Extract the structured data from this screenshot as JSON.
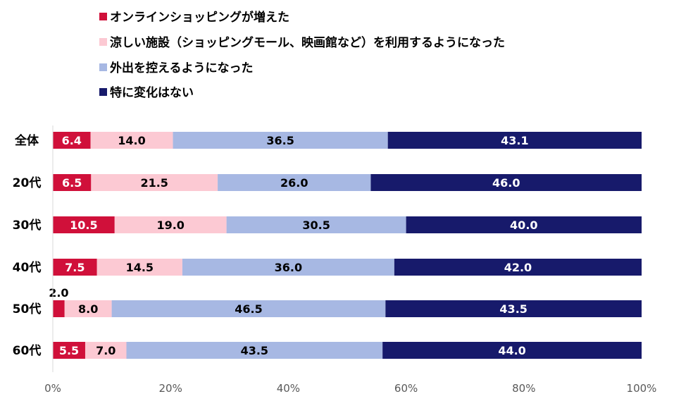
{
  "chart_data": {
    "type": "bar",
    "orientation": "horizontal",
    "stacked": "percent",
    "categories": [
      "全体",
      "20代",
      "30代",
      "40代",
      "50代",
      "60代"
    ],
    "series": [
      {
        "name": "オンラインショッピングが増えた",
        "color": "#d0103a",
        "label_color": "#ffffff",
        "values": [
          6.4,
          6.5,
          10.5,
          7.5,
          2.0,
          5.5
        ],
        "labels": [
          "6.4",
          "6.5",
          "10.5",
          "7.5",
          "2.0",
          "5.5"
        ]
      },
      {
        "name": "涼しい施設（ショッピングモール、映画館など）を利用するようになった",
        "color": "#fcc9d3",
        "label_color": "#000000",
        "values": [
          14.0,
          21.5,
          19.0,
          14.5,
          8.0,
          7.0
        ],
        "labels": [
          "14.0",
          "21.5",
          "19.0",
          "14.5",
          "8.0",
          "7.0"
        ]
      },
      {
        "name": "外出を控えるようになった",
        "color": "#a7b8e3",
        "label_color": "#000000",
        "values": [
          36.5,
          26.0,
          30.5,
          36.0,
          46.5,
          43.5
        ],
        "labels": [
          "36.5",
          "26.0",
          "30.5",
          "36.0",
          "46.5",
          "43.5"
        ]
      },
      {
        "name": "特に変化はない",
        "color": "#171a6b",
        "label_color": "#ffffff",
        "values": [
          43.1,
          46.0,
          40.0,
          42.0,
          43.5,
          44.0
        ],
        "labels": [
          "43.1",
          "46.0",
          "40.0",
          "42.0",
          "43.5",
          "44.0"
        ]
      }
    ],
    "x_ticks": [
      "0%",
      "20%",
      "40%",
      "60%",
      "80%",
      "100%"
    ],
    "xlim": [
      0,
      100
    ],
    "grid": false,
    "legend_position": "top-left"
  }
}
